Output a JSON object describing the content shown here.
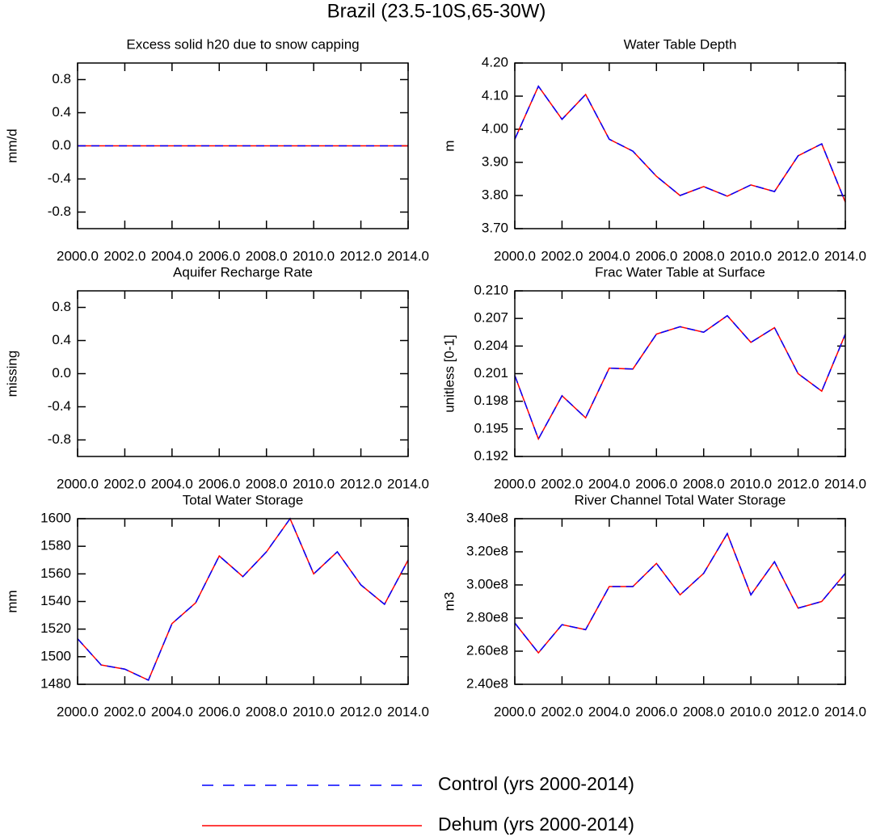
{
  "title": "Brazil (23.5-10S,65-30W)",
  "chart_data": [
    {
      "type": "line",
      "title": "Excess solid h20 due to snow capping",
      "y_label": "mm/d",
      "x": [
        2000,
        2001,
        2002,
        2003,
        2004,
        2005,
        2006,
        2007,
        2008,
        2009,
        2010,
        2011,
        2012,
        2013,
        2014
      ],
      "xlim": [
        2000,
        2014
      ],
      "xticks": [
        {
          "value": 2000,
          "label": "2000.0"
        },
        {
          "value": 2002,
          "label": "2002.0"
        },
        {
          "value": 2004,
          "label": "2004.0"
        },
        {
          "value": 2006,
          "label": "2006.0"
        },
        {
          "value": 2008,
          "label": "2008.0"
        },
        {
          "value": 2010,
          "label": "2010.0"
        },
        {
          "value": 2012,
          "label": "2012.0"
        },
        {
          "value": 2014,
          "label": "2014.0"
        }
      ],
      "ylim": [
        -1,
        1
      ],
      "yticks": [
        0.8,
        0.4,
        {
          "value": 0,
          "label": "0.0"
        },
        -0.4,
        -0.8
      ],
      "series": [
        {
          "name": "Dehum (yrs 2000-2014)",
          "color": "#ff0000",
          "style": "solid",
          "values": [
            0,
            0,
            0,
            0,
            0,
            0,
            0,
            0,
            0,
            0,
            0,
            0,
            0,
            0,
            0
          ]
        },
        {
          "name": "Control (yrs 2000-2014)",
          "color": "#0000ff",
          "style": "dashed",
          "values": [
            0,
            0,
            0,
            0,
            0,
            0,
            0,
            0,
            0,
            0,
            0,
            0,
            0,
            0,
            0
          ]
        }
      ]
    },
    {
      "type": "line",
      "title": "Water Table Depth",
      "y_label": "m",
      "x": [
        2000,
        2001,
        2002,
        2003,
        2004,
        2005,
        2006,
        2007,
        2008,
        2009,
        2010,
        2011,
        2012,
        2013,
        2014
      ],
      "xlim": [
        2000,
        2014
      ],
      "xticks": [
        {
          "value": 2000,
          "label": "2000.0"
        },
        {
          "value": 2002,
          "label": "2002.0"
        },
        {
          "value": 2004,
          "label": "2004.0"
        },
        {
          "value": 2006,
          "label": "2006.0"
        },
        {
          "value": 2008,
          "label": "2008.0"
        },
        {
          "value": 2010,
          "label": "2010.0"
        },
        {
          "value": 2012,
          "label": "2012.0"
        },
        {
          "value": 2014,
          "label": "2014.0"
        }
      ],
      "ylim": [
        3.7,
        4.2
      ],
      "yticks": [
        {
          "value": 4.2,
          "label": "4.20"
        },
        {
          "value": 4.1,
          "label": "4.10"
        },
        {
          "value": 4.0,
          "label": "4.00"
        },
        {
          "value": 3.9,
          "label": "3.90"
        },
        {
          "value": 3.8,
          "label": "3.80"
        },
        {
          "value": 3.7,
          "label": "3.70"
        }
      ],
      "series": [
        {
          "name": "Dehum (yrs 2000-2014)",
          "color": "#ff0000",
          "style": "solid",
          "values": [
            3.97,
            4.13,
            4.03,
            4.105,
            3.97,
            3.934,
            3.858,
            3.8,
            3.827,
            3.798,
            3.832,
            3.812,
            3.92,
            3.956,
            3.78
          ]
        },
        {
          "name": "Control (yrs 2000-2014)",
          "color": "#0000ff",
          "style": "dashed",
          "values": [
            3.97,
            4.13,
            4.03,
            4.105,
            3.97,
            3.934,
            3.858,
            3.8,
            3.827,
            3.798,
            3.832,
            3.812,
            3.92,
            3.956,
            3.78
          ]
        }
      ]
    },
    {
      "type": "line",
      "title": "Aquifer Recharge Rate",
      "y_label": "missing",
      "xlim": [
        2000,
        2014
      ],
      "xticks": [
        {
          "value": 2000,
          "label": "2000.0"
        },
        {
          "value": 2002,
          "label": "2002.0"
        },
        {
          "value": 2004,
          "label": "2004.0"
        },
        {
          "value": 2006,
          "label": "2006.0"
        },
        {
          "value": 2008,
          "label": "2008.0"
        },
        {
          "value": 2010,
          "label": "2010.0"
        },
        {
          "value": 2012,
          "label": "2012.0"
        },
        {
          "value": 2014,
          "label": "2014.0"
        }
      ],
      "ylim": [
        -1,
        1
      ],
      "yticks": [
        0.8,
        0.4,
        {
          "value": 0,
          "label": "0.0"
        },
        -0.4,
        -0.8
      ]
    },
    {
      "type": "line",
      "title": "Frac Water Table at Surface",
      "y_label": "unitless [0-1]",
      "x": [
        2000,
        2001,
        2002,
        2003,
        2004,
        2005,
        2006,
        2007,
        2008,
        2009,
        2010,
        2011,
        2012,
        2013,
        2014
      ],
      "xlim": [
        2000,
        2014
      ],
      "xticks": [
        {
          "value": 2000,
          "label": "2000.0"
        },
        {
          "value": 2002,
          "label": "2002.0"
        },
        {
          "value": 2004,
          "label": "2004.0"
        },
        {
          "value": 2006,
          "label": "2006.0"
        },
        {
          "value": 2008,
          "label": "2008.0"
        },
        {
          "value": 2010,
          "label": "2010.0"
        },
        {
          "value": 2012,
          "label": "2012.0"
        },
        {
          "value": 2014,
          "label": "2014.0"
        }
      ],
      "ylim": [
        0.192,
        0.21
      ],
      "yticks": [
        {
          "value": 0.21,
          "label": "0.210"
        },
        0.207,
        0.204,
        0.201,
        0.198,
        0.195,
        0.192
      ],
      "series": [
        {
          "name": "Dehum (yrs 2000-2014)",
          "color": "#ff0000",
          "style": "solid",
          "values": [
            0.2008,
            0.1939,
            0.1986,
            0.1962,
            0.2016,
            0.2015,
            0.2053,
            0.2061,
            0.2055,
            0.2073,
            0.2044,
            0.206,
            0.201,
            0.1991,
            0.2053
          ]
        },
        {
          "name": "Control (yrs 2000-2014)",
          "color": "#0000ff",
          "style": "dashed",
          "values": [
            0.2008,
            0.1939,
            0.1986,
            0.1962,
            0.2016,
            0.2015,
            0.2053,
            0.2061,
            0.2055,
            0.2073,
            0.2044,
            0.206,
            0.201,
            0.1991,
            0.2053
          ]
        }
      ]
    },
    {
      "type": "line",
      "title": "Total Water Storage",
      "y_label": "mm",
      "x": [
        2000,
        2001,
        2002,
        2003,
        2004,
        2005,
        2006,
        2007,
        2008,
        2009,
        2010,
        2011,
        2012,
        2013,
        2014
      ],
      "xlim": [
        2000,
        2014
      ],
      "xticks": [
        {
          "value": 2000,
          "label": "2000.0"
        },
        {
          "value": 2002,
          "label": "2002.0"
        },
        {
          "value": 2004,
          "label": "2004.0"
        },
        {
          "value": 2006,
          "label": "2006.0"
        },
        {
          "value": 2008,
          "label": "2008.0"
        },
        {
          "value": 2010,
          "label": "2010.0"
        },
        {
          "value": 2012,
          "label": "2012.0"
        },
        {
          "value": 2014,
          "label": "2014.0"
        }
      ],
      "ylim": [
        1480,
        1600
      ],
      "yticks": [
        1600,
        1580,
        1560,
        1540,
        1520,
        1500,
        1480
      ],
      "series": [
        {
          "name": "Dehum (yrs 2000-2014)",
          "color": "#ff0000",
          "style": "solid",
          "values": [
            1513,
            1494,
            1491,
            1483,
            1524,
            1539,
            1573,
            1558,
            1576,
            1600,
            1560,
            1576,
            1552,
            1538,
            1570
          ]
        },
        {
          "name": "Control (yrs 2000-2014)",
          "color": "#0000ff",
          "style": "dashed",
          "values": [
            1513,
            1494,
            1491,
            1483,
            1524,
            1539,
            1573,
            1558,
            1576,
            1600,
            1560,
            1576,
            1552,
            1538,
            1570
          ]
        }
      ]
    },
    {
      "type": "line",
      "title": "River Channel Total Water Storage",
      "y_label": "m3",
      "x": [
        2000,
        2001,
        2002,
        2003,
        2004,
        2005,
        2006,
        2007,
        2008,
        2009,
        2010,
        2011,
        2012,
        2013,
        2014
      ],
      "xlim": [
        2000,
        2014
      ],
      "xticks": [
        {
          "value": 2000,
          "label": "2000.0"
        },
        {
          "value": 2002,
          "label": "2002.0"
        },
        {
          "value": 2004,
          "label": "2004.0"
        },
        {
          "value": 2006,
          "label": "2006.0"
        },
        {
          "value": 2008,
          "label": "2008.0"
        },
        {
          "value": 2010,
          "label": "2010.0"
        },
        {
          "value": 2012,
          "label": "2012.0"
        },
        {
          "value": 2014,
          "label": "2014.0"
        }
      ],
      "ylim": [
        240000000,
        340000000
      ],
      "yticks": [
        {
          "value": 340000000,
          "label": "3.40e8"
        },
        {
          "value": 320000000,
          "label": "3.20e8"
        },
        {
          "value": 300000000,
          "label": "3.00e8"
        },
        {
          "value": 280000000,
          "label": "2.80e8"
        },
        {
          "value": 260000000,
          "label": "2.60e8"
        },
        {
          "value": 240000000,
          "label": "2.40e8"
        }
      ],
      "series": [
        {
          "name": "Dehum (yrs 2000-2014)",
          "color": "#ff0000",
          "style": "solid",
          "values": [
            277000000,
            259000000,
            276000000,
            273000000,
            299000000,
            299000000,
            313000000,
            294000000,
            307000000,
            331000000,
            294000000,
            314000000,
            286000000,
            290000000,
            307000000
          ]
        },
        {
          "name": "Control (yrs 2000-2014)",
          "color": "#0000ff",
          "style": "dashed",
          "values": [
            277000000,
            259000000,
            276000000,
            273000000,
            299000000,
            299000000,
            313000000,
            294000000,
            307000000,
            331000000,
            294000000,
            314000000,
            286000000,
            290000000,
            307000000
          ]
        }
      ]
    }
  ]
}
